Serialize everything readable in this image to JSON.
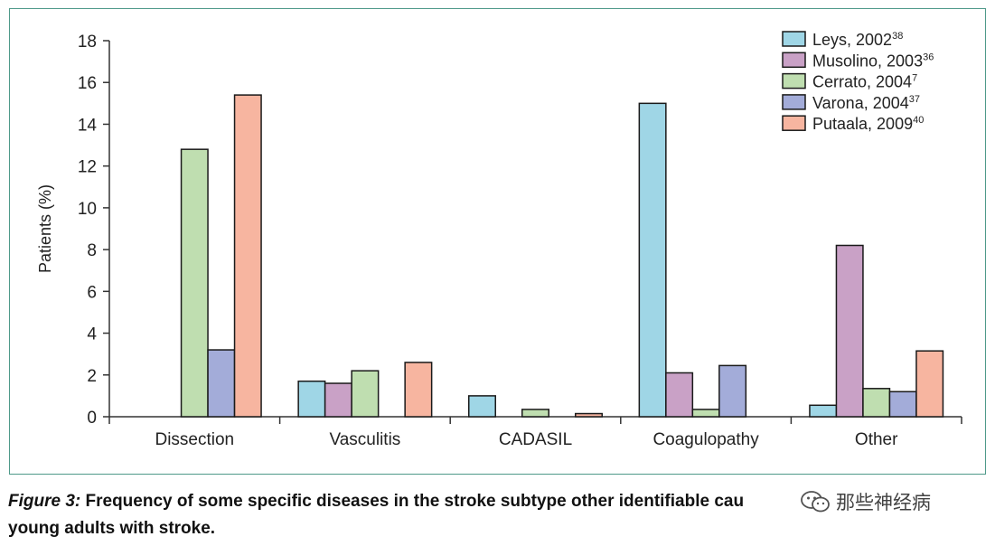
{
  "chart_data": {
    "type": "bar",
    "categories": [
      "Dissection",
      "Vasculitis",
      "CADASIL",
      "Coagulopathy",
      "Other"
    ],
    "ylabel": "Patients (%)",
    "xlabel": "",
    "ylim": [
      0,
      18
    ],
    "yticks": [
      0,
      2,
      4,
      6,
      8,
      10,
      12,
      14,
      16,
      18
    ],
    "legend_position": "top-right",
    "grid": false,
    "series": [
      {
        "name": "Leys, 2002",
        "ref": "38",
        "color": "#9fd6e6",
        "values": [
          null,
          1.7,
          1.0,
          15.0,
          0.55
        ]
      },
      {
        "name": "Musolino, 2003",
        "ref": "36",
        "color": "#c9a1c6",
        "values": [
          null,
          1.6,
          null,
          2.1,
          8.2
        ]
      },
      {
        "name": "Cerrato, 2004",
        "ref": "7",
        "color": "#bfdeb0",
        "values": [
          12.8,
          2.2,
          0.35,
          0.35,
          1.35
        ]
      },
      {
        "name": "Varona, 2004",
        "ref": "37",
        "color": "#a3acd9",
        "values": [
          3.2,
          null,
          null,
          2.45,
          1.2
        ]
      },
      {
        "name": "Putaala, 2009",
        "ref": "40",
        "color": "#f7b5a0",
        "values": [
          15.4,
          2.6,
          0.15,
          null,
          3.15
        ]
      }
    ]
  },
  "caption": {
    "figure_label": "Figure 3:",
    "text": " Frequency of some specific diseases in the stroke subtype other identifiable cau",
    "text_line2": "young adults with stroke."
  },
  "watermark": {
    "text": "那些神经病",
    "icon": "wechat-icon"
  }
}
